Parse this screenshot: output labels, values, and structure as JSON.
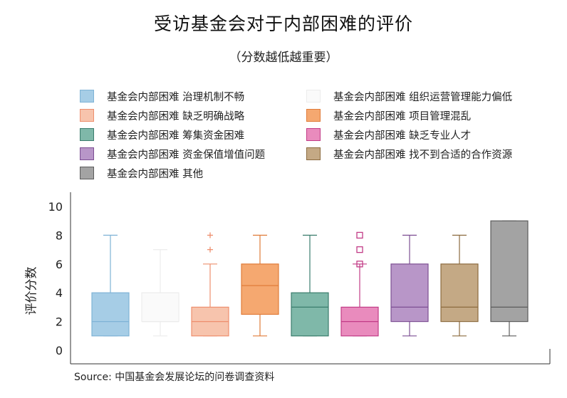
{
  "chart_data": {
    "type": "box",
    "title": "受访基金会对于内部困难的评价",
    "subtitle": "（分数越低越重要）",
    "ylabel": "评价分数",
    "ylim": [
      0,
      10
    ],
    "yticks": [
      "0",
      "2",
      "4",
      "6",
      "8",
      "10"
    ],
    "legend_position": "top",
    "series": [
      {
        "name": "基金会内部困难 治理机制不畅",
        "color": "#a6cde6",
        "edge": "#7fb3d6",
        "min": 1,
        "q1": 1,
        "median": 2,
        "q3": 4,
        "max": 8,
        "outliers": []
      },
      {
        "name": "基金会内部困难 组织运营管理能力偏低",
        "color": "#fafafa",
        "edge": "#ececec",
        "min": 1,
        "q1": 2,
        "median": 2,
        "q3": 4,
        "max": 7,
        "outliers": []
      },
      {
        "name": "基金会内部困难 缺乏明确战略",
        "color": "#f7c4ad",
        "edge": "#ee8f6e",
        "min": 1,
        "q1": 1,
        "median": 2,
        "q3": 3,
        "max": 6,
        "outliers": [
          7,
          8
        ]
      },
      {
        "name": "基金会内部困难 项目管理混乱",
        "color": "#f5a870",
        "edge": "#e07c3a",
        "min": 1,
        "q1": 2.5,
        "median": 4.5,
        "q3": 6,
        "max": 8,
        "outliers": []
      },
      {
        "name": "基金会内部困难 筹集资金困难",
        "color": "#7fb8a9",
        "edge": "#3b7d6d",
        "min": 1,
        "q1": 1,
        "median": 3,
        "q3": 4,
        "max": 8,
        "outliers": []
      },
      {
        "name": "基金会内部困难 缺乏专业人才",
        "color": "#e98bbd",
        "edge": "#c23c87",
        "min": 1,
        "q1": 1,
        "median": 2,
        "q3": 3,
        "max": 6,
        "outliers": [
          6,
          7,
          8
        ]
      },
      {
        "name": "基金会内部困难 资金保值增值问题",
        "color": "#b896c8",
        "edge": "#7d4f93",
        "min": 1,
        "q1": 2,
        "median": 3,
        "q3": 6,
        "max": 8,
        "outliers": []
      },
      {
        "name": "基金会内部困难 找不到合适的合作资源",
        "color": "#c4a985",
        "edge": "#8c6b3f",
        "min": 1,
        "q1": 2,
        "median": 3,
        "q3": 6,
        "max": 8,
        "outliers": []
      },
      {
        "name": "基金会内部困难 其他",
        "color": "#a3a3a3",
        "edge": "#5c5c5c",
        "min": 1,
        "q1": 2,
        "median": 3,
        "q3": 9,
        "max": 9,
        "outliers": []
      }
    ]
  },
  "source": "Source:  中国基金会发展论坛的问卷调查资料"
}
